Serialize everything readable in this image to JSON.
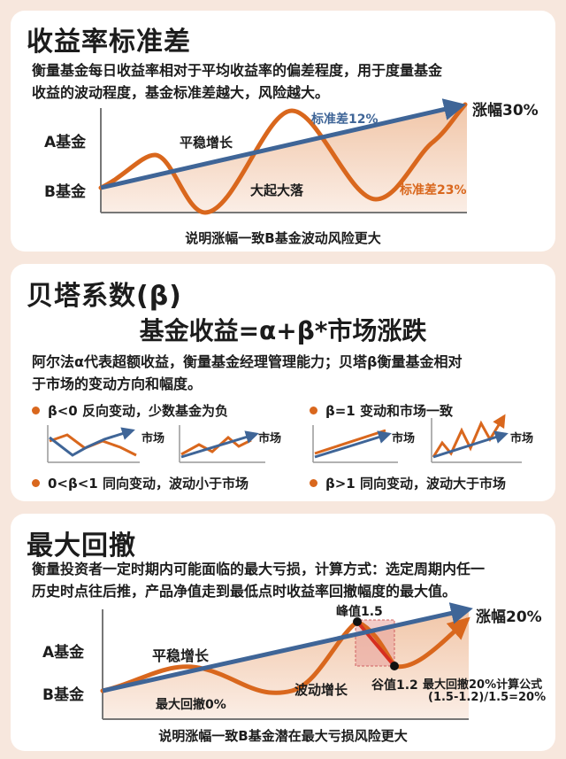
{
  "section1": {
    "title": "收益率标准差",
    "desc_line1": "衡量基金每日收益率相对于平均收益率的偏差程度，用于度量基金",
    "desc_line2": "收益的波动程度，基金标准差越大，风险越大。",
    "label_a": "A基金",
    "label_b": "B基金",
    "steady": "平稳增长",
    "volatile": "大起大落",
    "std_a": "标准差12%",
    "std_b": "标准差23%",
    "gain": "涨幅30%",
    "caption": "说明涨幅一致B基金波动风险更大"
  },
  "section2": {
    "title": "贝塔系数(β)",
    "formula": "基金收益=α+β*市场涨跌",
    "desc_line1": "阿尔法α代表超额收益，衡量基金经理管理能力；贝塔β衡量基金相对",
    "desc_line2": "于市场的变动方向和幅度。",
    "items": [
      {
        "label": "β<0  反向变动，少数基金为负"
      },
      {
        "label": "β=1 变动和市场一致"
      },
      {
        "label": "0<β<1 同向变动，波动小于市场"
      },
      {
        "label": "β>1 同向变动，波动大于市场"
      }
    ],
    "market_label": "市场"
  },
  "section3": {
    "title": "最大回撤",
    "desc_line1": "衡量投资者一定时期内可能面临的最大亏损，计算方式：选定周期内任一",
    "desc_line2": "历史时点往后推，产品净值走到最低点时收益率回撤幅度的最大值。",
    "label_a": "A基金",
    "label_b": "B基金",
    "steady": "平稳增长",
    "wave": "波动增长",
    "max_dd_0": "最大回撤0%",
    "peak": "峰值1.5",
    "valley": "谷值1.2",
    "formula_line1": "最大回撤20%计算公式",
    "formula_line2": "(1.5-1.2)/1.5=20%",
    "gain": "涨幅20%",
    "caption": "说明涨幅一致B基金潜在最大亏损风险更大"
  },
  "colors": {
    "orange": "#d9671d",
    "blue": "#3f6597",
    "background": "#f7e7dd",
    "card": "#ffffff"
  }
}
